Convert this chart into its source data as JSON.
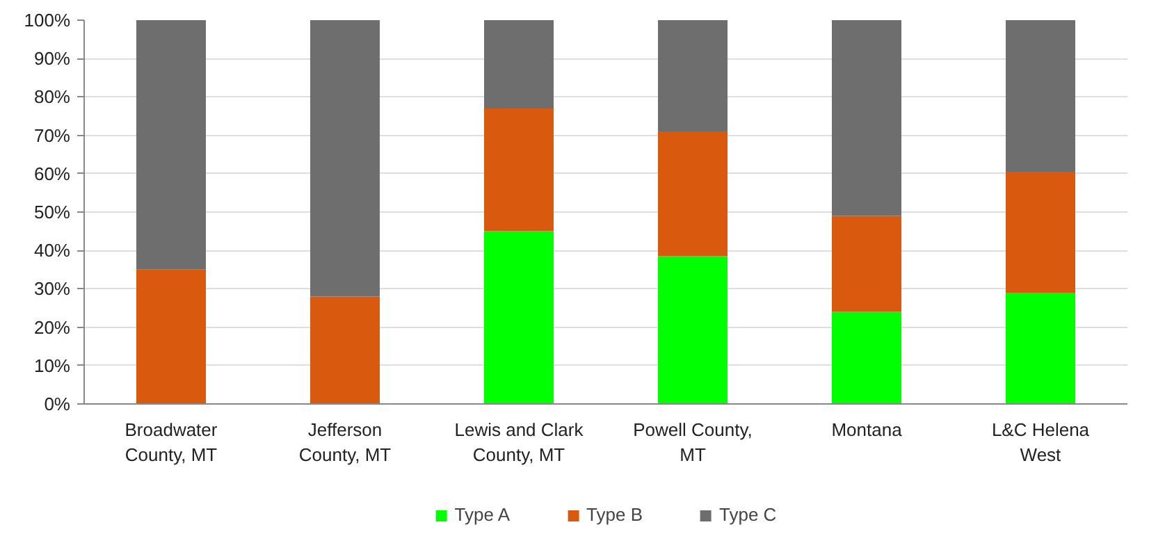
{
  "chart_data": {
    "type": "bar",
    "stacked": true,
    "categories": [
      "Broadwater County, MT",
      "Jefferson County, MT",
      "Lewis and Clark County, MT",
      "Powell County, MT",
      "Montana",
      "L&C Helena West"
    ],
    "series": [
      {
        "name": "Type A",
        "color": "#00ff00",
        "values": [
          0,
          0,
          45,
          38.5,
          24,
          29
        ]
      },
      {
        "name": "Type B",
        "color": "#d9590f",
        "values": [
          35,
          28,
          32,
          32.5,
          25,
          31.5
        ]
      },
      {
        "name": "Type C",
        "color": "#6e6e6e",
        "values": [
          65,
          72,
          23,
          29,
          51,
          39.5
        ]
      }
    ],
    "ylim": [
      0,
      100
    ],
    "yticks": [
      {
        "value": 0,
        "label": "0%"
      },
      {
        "value": 10,
        "label": "10%"
      },
      {
        "value": 20,
        "label": "20%"
      },
      {
        "value": 30,
        "label": "30%"
      },
      {
        "value": 40,
        "label": "40%"
      },
      {
        "value": 50,
        "label": "50%"
      },
      {
        "value": 60,
        "label": "60%"
      },
      {
        "value": 70,
        "label": "70%"
      },
      {
        "value": 80,
        "label": "80%"
      },
      {
        "value": 90,
        "label": "90%"
      },
      {
        "value": 100,
        "label": "100%"
      }
    ],
    "grid": "y",
    "legend": "bottom"
  }
}
